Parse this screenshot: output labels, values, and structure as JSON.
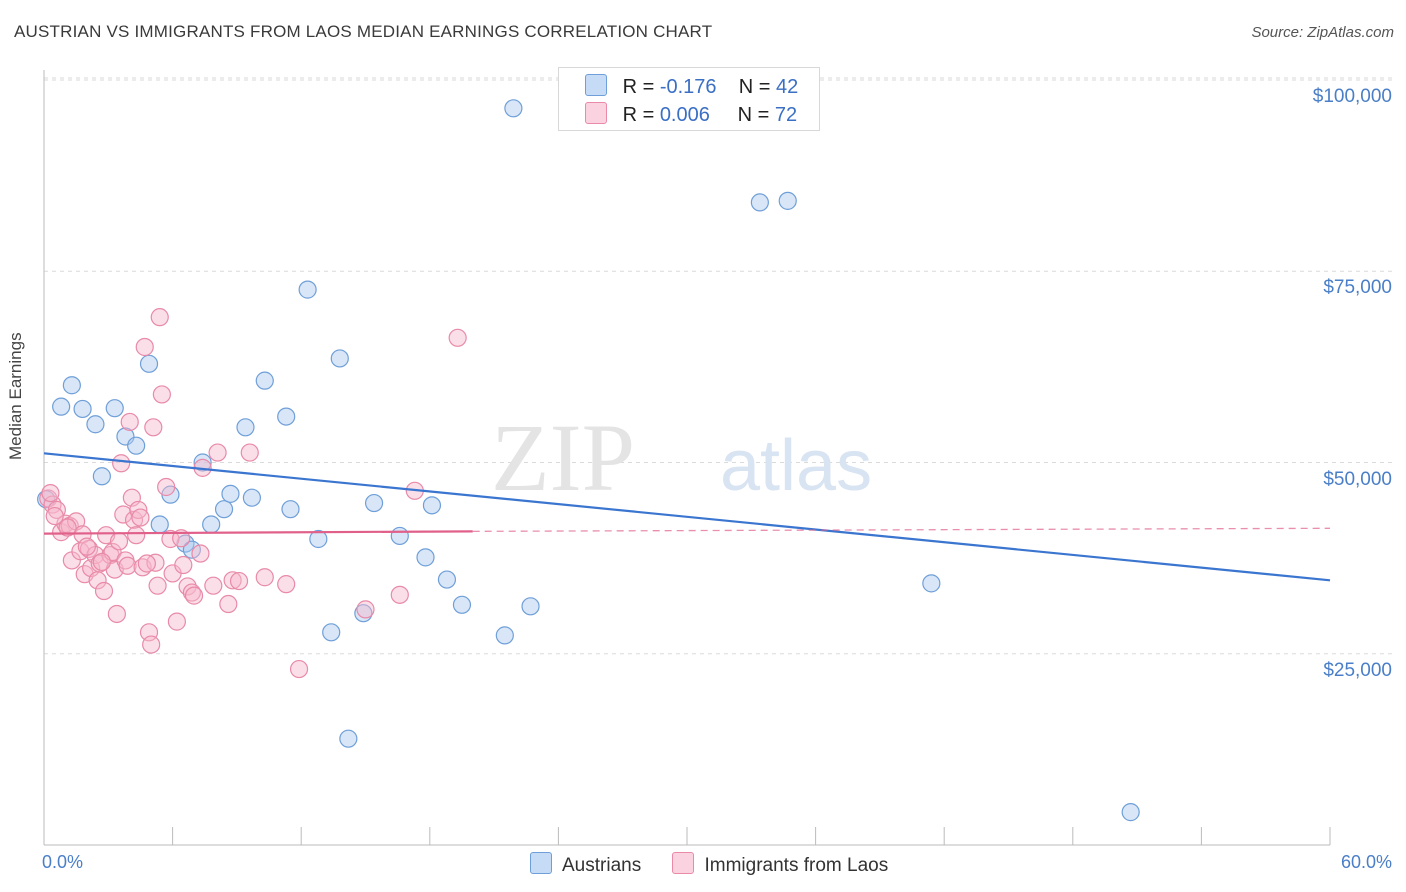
{
  "title": "AUSTRIAN VS IMMIGRANTS FROM LAOS MEDIAN EARNINGS CORRELATION CHART",
  "source": "Source: ZipAtlas.com",
  "watermark": {
    "zip": "ZIP",
    "atlas": "atlas"
  },
  "legend_stats": [
    {
      "r_label": "R =",
      "r_value": "-0.176",
      "n_label": "N =",
      "n_value": "42",
      "color": "#a9c8f0"
    },
    {
      "r_label": "R =",
      "r_value": "0.006",
      "n_label": "N =",
      "n_value": "72",
      "color": "#f6b8cc"
    }
  ],
  "chart_data": {
    "type": "scatter",
    "ylabel": "Median Earnings",
    "xlim": [
      0,
      60
    ],
    "ylim": [
      0,
      105000
    ],
    "x_tick_labels": {
      "left": "0.0%",
      "right": "60.0%"
    },
    "y_ticks": [
      {
        "value": 25000,
        "label": "$25,000"
      },
      {
        "value": 50000,
        "label": "$50,000"
      },
      {
        "value": 75000,
        "label": "$75,000"
      },
      {
        "value": 100000,
        "label": "$100,000"
      }
    ],
    "grid": true,
    "legend_position": "bottom",
    "series": [
      {
        "name": "Austrians",
        "color": "#a9c8f0",
        "stroke": "#6f9fd8",
        "trend": {
          "x": [
            0,
            60
          ],
          "y": [
            51200,
            34600
          ],
          "color": "#3a75d0"
        },
        "points": [
          [
            0.1,
            45200
          ],
          [
            0.8,
            57300
          ],
          [
            1.3,
            60100
          ],
          [
            1.8,
            57000
          ],
          [
            2.4,
            55000
          ],
          [
            2.7,
            48200
          ],
          [
            3.3,
            57100
          ],
          [
            3.8,
            53400
          ],
          [
            4.3,
            52200
          ],
          [
            4.9,
            62900
          ],
          [
            5.4,
            41900
          ],
          [
            5.9,
            45800
          ],
          [
            6.6,
            39400
          ],
          [
            6.9,
            38600
          ],
          [
            7.4,
            50000
          ],
          [
            7.8,
            41900
          ],
          [
            8.4,
            43900
          ],
          [
            8.7,
            45900
          ],
          [
            9.4,
            54600
          ],
          [
            9.7,
            45400
          ],
          [
            10.3,
            60700
          ],
          [
            11.3,
            56000
          ],
          [
            11.5,
            43900
          ],
          [
            12.3,
            72600
          ],
          [
            12.8,
            40000
          ],
          [
            13.4,
            27800
          ],
          [
            13.8,
            63600
          ],
          [
            14.2,
            13900
          ],
          [
            14.9,
            30300
          ],
          [
            15.4,
            44700
          ],
          [
            16.6,
            40400
          ],
          [
            17.8,
            37600
          ],
          [
            18.1,
            44400
          ],
          [
            18.8,
            34700
          ],
          [
            19.5,
            31400
          ],
          [
            21.5,
            27400
          ],
          [
            21.9,
            96300
          ],
          [
            22.7,
            31200
          ],
          [
            33.4,
            84000
          ],
          [
            34.7,
            84200
          ],
          [
            41.4,
            34200
          ],
          [
            50.7,
            4300
          ]
        ]
      },
      {
        "name": "Immigrants from Laos",
        "color": "#f6b8cc",
        "stroke": "#e88aa8",
        "trend": {
          "x": [
            0,
            20
          ],
          "y": [
            40700,
            41000
          ],
          "ext_x": [
            60
          ],
          "ext_y": [
            41400
          ],
          "color": "#e0608a"
        },
        "points": [
          [
            0.2,
            45300
          ],
          [
            0.4,
            44500
          ],
          [
            0.6,
            43800
          ],
          [
            0.8,
            40900
          ],
          [
            1.0,
            42000
          ],
          [
            1.2,
            41700
          ],
          [
            1.3,
            37200
          ],
          [
            1.5,
            42300
          ],
          [
            1.7,
            38400
          ],
          [
            1.8,
            40600
          ],
          [
            1.9,
            35400
          ],
          [
            2.1,
            38700
          ],
          [
            2.2,
            36200
          ],
          [
            2.4,
            37900
          ],
          [
            2.5,
            34600
          ],
          [
            2.6,
            36800
          ],
          [
            2.8,
            33200
          ],
          [
            2.9,
            40500
          ],
          [
            3.1,
            37900
          ],
          [
            3.2,
            38300
          ],
          [
            3.3,
            36000
          ],
          [
            3.4,
            30200
          ],
          [
            3.6,
            49900
          ],
          [
            3.7,
            43200
          ],
          [
            3.8,
            37200
          ],
          [
            3.9,
            36500
          ],
          [
            4.0,
            55300
          ],
          [
            4.1,
            45400
          ],
          [
            4.2,
            42500
          ],
          [
            4.3,
            40500
          ],
          [
            4.4,
            43800
          ],
          [
            4.5,
            42800
          ],
          [
            4.6,
            36300
          ],
          [
            4.7,
            65100
          ],
          [
            4.9,
            27800
          ],
          [
            5.0,
            26200
          ],
          [
            5.1,
            54600
          ],
          [
            5.2,
            36900
          ],
          [
            5.3,
            33900
          ],
          [
            5.4,
            69000
          ],
          [
            5.5,
            58900
          ],
          [
            5.7,
            46800
          ],
          [
            5.9,
            40000
          ],
          [
            6.0,
            35500
          ],
          [
            6.2,
            29200
          ],
          [
            6.4,
            40100
          ],
          [
            6.7,
            33800
          ],
          [
            6.9,
            33000
          ],
          [
            7.3,
            38100
          ],
          [
            7.4,
            49300
          ],
          [
            7.9,
            33900
          ],
          [
            8.1,
            51300
          ],
          [
            8.6,
            31500
          ],
          [
            8.8,
            34600
          ],
          [
            9.6,
            51300
          ],
          [
            10.3,
            35000
          ],
          [
            11.3,
            34100
          ],
          [
            11.9,
            23000
          ],
          [
            15.0,
            30800
          ],
          [
            16.6,
            32700
          ],
          [
            17.3,
            46300
          ],
          [
            19.3,
            66300
          ],
          [
            0.3,
            46000
          ],
          [
            0.5,
            43000
          ],
          [
            1.1,
            41500
          ],
          [
            2.0,
            39000
          ],
          [
            2.7,
            37000
          ],
          [
            3.5,
            39700
          ],
          [
            4.8,
            36800
          ],
          [
            6.5,
            36600
          ],
          [
            7.0,
            32600
          ],
          [
            9.1,
            34500
          ]
        ]
      }
    ]
  }
}
